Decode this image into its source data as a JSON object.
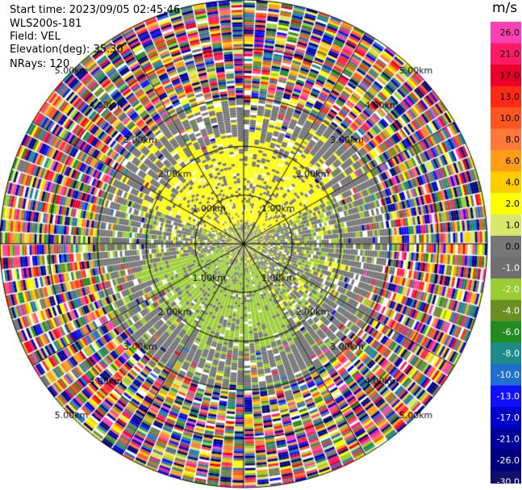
{
  "header": {
    "start_time": "Start time: 2023/09/05 02:45:46",
    "instrument": "WLS200s-181",
    "field": "Field: VEL",
    "elevation": "Elevation(deg): 35.30",
    "nrays": "NRays: 120"
  },
  "chart_data": {
    "type": "heatmap",
    "projection": "polar-ppi",
    "field": "VEL",
    "units": "m/s",
    "n_rays": 120,
    "range_rings_km": [
      1.0,
      2.0,
      3.0,
      4.0,
      5.0
    ],
    "max_range_km": 5.0,
    "ring_label_suffix": "km",
    "ring_labels": [
      "1.00km",
      "2.00km",
      "3.00km",
      "4.00km",
      "5.00km"
    ],
    "spoke_angles_deg": [
      0,
      30,
      60,
      90,
      120,
      150,
      180,
      210,
      240,
      270,
      300,
      330
    ],
    "colorbar": {
      "title": "m/s",
      "ticks": [
        "26.0",
        "21.0",
        "17.0",
        "13.0",
        "10.0",
        "8.0",
        "6.0",
        "4.0",
        "2.0",
        "1.0",
        "0.0",
        "-1.0",
        "-2.0",
        "-4.0",
        "-6.0",
        "-8.0",
        "-10.0",
        "-13.0",
        "-17.0",
        "-21.0",
        "-26.0",
        "-30.0"
      ],
      "colors": [
        "#ff3fb4",
        "#ff1a66",
        "#e8002a",
        "#ff2a16",
        "#ff5520",
        "#ff7a3a",
        "#ff9e16",
        "#ffcc00",
        "#ffff00",
        "#d8e86a",
        "#767676",
        "#6f6f6f",
        "#9acd32",
        "#6b8e23",
        "#228b22",
        "#1e8b8b",
        "#1e6fd0",
        "#1010ff",
        "#0000cd",
        "#000099",
        "#00007a",
        "#10106a"
      ]
    },
    "pattern": {
      "near_gray_km": 0.45,
      "inner_zone_km": 2.1,
      "mid_zone_km": 3.0,
      "noise_from_km": 3.0,
      "positive_sector_deg": [
        -70,
        60
      ],
      "negative_sector_deg": [
        150,
        255
      ]
    }
  }
}
